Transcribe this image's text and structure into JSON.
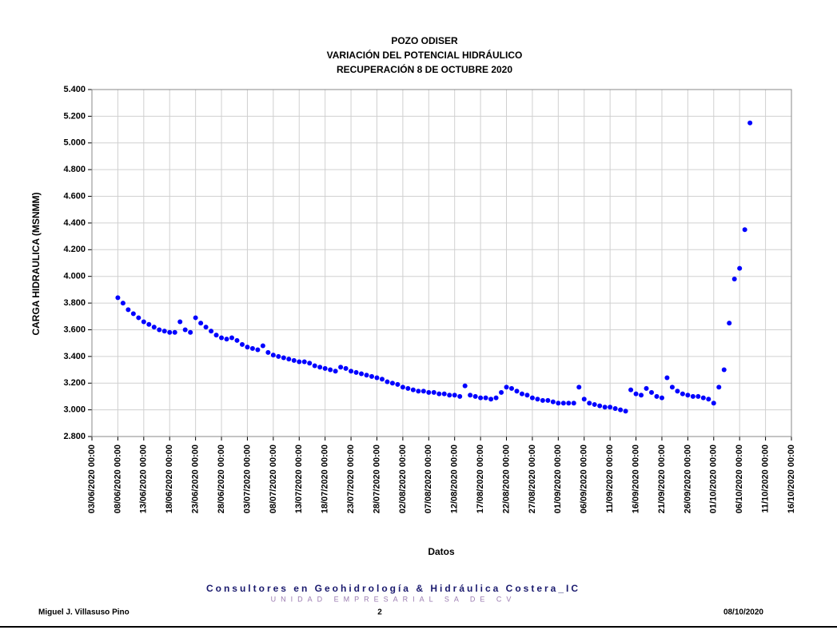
{
  "chart_data": {
    "type": "scatter",
    "title": "POZO ODISER",
    "subtitle": [
      "VARIACIÓN DEL POTENCIAL HIDRÁULICO",
      "RECUPERACIÓN 8 DE OCTUBRE 2020"
    ],
    "x_label": "Datos",
    "y_label": "CARGA HIDRAULICA (MSNMM)",
    "color": "#0000ff",
    "grid": true,
    "xlim": [
      "03/06/2020 00:00",
      "16/10/2020 00:00"
    ],
    "xticks": [
      "03/06/2020 00:00",
      "08/06/2020 00:00",
      "13/06/2020 00:00",
      "18/06/2020 00:00",
      "23/06/2020 00:00",
      "28/06/2020 00:00",
      "03/07/2020 00:00",
      "08/07/2020 00:00",
      "13/07/2020 00:00",
      "18/07/2020 00:00",
      "23/07/2020 00:00",
      "28/07/2020 00:00",
      "02/08/2020 00:00",
      "07/08/2020 00:00",
      "12/08/2020 00:00",
      "17/08/2020 00:00",
      "22/08/2020 00:00",
      "27/08/2020 00:00",
      "01/09/2020 00:00",
      "06/09/2020 00:00",
      "11/09/2020 00:00",
      "16/09/2020 00:00",
      "21/09/2020 00:00",
      "26/09/2020 00:00",
      "01/10/2020 00:00",
      "06/10/2020 00:00",
      "11/10/2020 00:00",
      "16/10/2020 00:00"
    ],
    "ylim": [
      2.8,
      5.4
    ],
    "yticks": [
      {
        "value": 2.8,
        "label": "2.800"
      },
      {
        "value": 3.0,
        "label": "3.000"
      },
      {
        "value": 3.2,
        "label": "3.200"
      },
      {
        "value": 3.4,
        "label": "3.400"
      },
      {
        "value": 3.6,
        "label": "3.600"
      },
      {
        "value": 3.8,
        "label": "3.800"
      },
      {
        "value": 4.0,
        "label": "4.000"
      },
      {
        "value": 4.2,
        "label": "4.200"
      },
      {
        "value": 4.4,
        "label": "4.400"
      },
      {
        "value": 4.6,
        "label": "4.600"
      },
      {
        "value": 4.8,
        "label": "4.800"
      },
      {
        "value": 5.0,
        "label": "5.000"
      },
      {
        "value": 5.2,
        "label": "5.200"
      },
      {
        "value": 5.4,
        "label": "5.400"
      }
    ],
    "x": [
      "08/06/2020 00:00",
      "09/06/2020 00:00",
      "10/06/2020 00:00",
      "11/06/2020 00:00",
      "12/06/2020 00:00",
      "13/06/2020 00:00",
      "14/06/2020 00:00",
      "15/06/2020 00:00",
      "16/06/2020 00:00",
      "17/06/2020 00:00",
      "18/06/2020 00:00",
      "19/06/2020 00:00",
      "20/06/2020 00:00",
      "21/06/2020 00:00",
      "22/06/2020 00:00",
      "23/06/2020 00:00",
      "24/06/2020 00:00",
      "25/06/2020 00:00",
      "26/06/2020 00:00",
      "27/06/2020 00:00",
      "28/06/2020 00:00",
      "29/06/2020 00:00",
      "30/06/2020 00:00",
      "01/07/2020 00:00",
      "02/07/2020 00:00",
      "03/07/2020 00:00",
      "04/07/2020 00:00",
      "05/07/2020 00:00",
      "06/07/2020 00:00",
      "07/07/2020 00:00",
      "08/07/2020 00:00",
      "09/07/2020 00:00",
      "10/07/2020 00:00",
      "11/07/2020 00:00",
      "12/07/2020 00:00",
      "13/07/2020 00:00",
      "14/07/2020 00:00",
      "15/07/2020 00:00",
      "16/07/2020 00:00",
      "17/07/2020 00:00",
      "18/07/2020 00:00",
      "19/07/2020 00:00",
      "20/07/2020 00:00",
      "21/07/2020 00:00",
      "22/07/2020 00:00",
      "23/07/2020 00:00",
      "24/07/2020 00:00",
      "25/07/2020 00:00",
      "26/07/2020 00:00",
      "27/07/2020 00:00",
      "28/07/2020 00:00",
      "29/07/2020 00:00",
      "30/07/2020 00:00",
      "31/07/2020 00:00",
      "01/08/2020 00:00",
      "02/08/2020 00:00",
      "03/08/2020 00:00",
      "04/08/2020 00:00",
      "05/08/2020 00:00",
      "06/08/2020 00:00",
      "07/08/2020 00:00",
      "08/08/2020 00:00",
      "09/08/2020 00:00",
      "10/08/2020 00:00",
      "11/08/2020 00:00",
      "12/08/2020 00:00",
      "13/08/2020 00:00",
      "14/08/2020 00:00",
      "15/08/2020 00:00",
      "16/08/2020 00:00",
      "17/08/2020 00:00",
      "18/08/2020 00:00",
      "19/08/2020 00:00",
      "20/08/2020 00:00",
      "21/08/2020 00:00",
      "22/08/2020 00:00",
      "23/08/2020 00:00",
      "24/08/2020 00:00",
      "25/08/2020 00:00",
      "26/08/2020 00:00",
      "27/08/2020 00:00",
      "28/08/2020 00:00",
      "29/08/2020 00:00",
      "30/08/2020 00:00",
      "31/08/2020 00:00",
      "01/09/2020 00:00",
      "02/09/2020 00:00",
      "03/09/2020 00:00",
      "04/09/2020 00:00",
      "05/09/2020 00:00",
      "06/09/2020 00:00",
      "07/09/2020 00:00",
      "08/09/2020 00:00",
      "09/09/2020 00:00",
      "10/09/2020 00:00",
      "11/09/2020 00:00",
      "12/09/2020 00:00",
      "13/09/2020 00:00",
      "14/09/2020 00:00",
      "15/09/2020 00:00",
      "16/09/2020 00:00",
      "17/09/2020 00:00",
      "18/09/2020 00:00",
      "19/09/2020 00:00",
      "20/09/2020 00:00",
      "21/09/2020 00:00",
      "22/09/2020 00:00",
      "23/09/2020 00:00",
      "24/09/2020 00:00",
      "25/09/2020 00:00",
      "26/09/2020 00:00",
      "27/09/2020 00:00",
      "28/09/2020 00:00",
      "29/09/2020 00:00",
      "30/09/2020 00:00",
      "01/10/2020 00:00",
      "02/10/2020 00:00",
      "03/10/2020 00:00",
      "04/10/2020 00:00",
      "05/10/2020 00:00",
      "06/10/2020 00:00",
      "07/10/2020 00:00",
      "08/10/2020 00:00"
    ],
    "values": [
      3.84,
      3.8,
      3.75,
      3.72,
      3.69,
      3.66,
      3.64,
      3.62,
      3.6,
      3.59,
      3.58,
      3.58,
      3.66,
      3.6,
      3.58,
      3.69,
      3.65,
      3.62,
      3.59,
      3.56,
      3.54,
      3.53,
      3.54,
      3.52,
      3.49,
      3.47,
      3.46,
      3.45,
      3.48,
      3.43,
      3.41,
      3.4,
      3.39,
      3.38,
      3.37,
      3.36,
      3.36,
      3.35,
      3.33,
      3.32,
      3.31,
      3.3,
      3.29,
      3.32,
      3.31,
      3.29,
      3.28,
      3.27,
      3.26,
      3.25,
      3.24,
      3.23,
      3.21,
      3.2,
      3.19,
      3.17,
      3.16,
      3.15,
      3.14,
      3.14,
      3.13,
      3.13,
      3.12,
      3.12,
      3.11,
      3.11,
      3.1,
      3.18,
      3.11,
      3.1,
      3.09,
      3.09,
      3.08,
      3.09,
      3.13,
      3.17,
      3.16,
      3.14,
      3.12,
      3.11,
      3.09,
      3.08,
      3.07,
      3.07,
      3.06,
      3.05,
      3.05,
      3.05,
      3.05,
      3.17,
      3.08,
      3.05,
      3.04,
      3.03,
      3.02,
      3.02,
      3.01,
      3.0,
      2.99,
      3.15,
      3.12,
      3.11,
      3.16,
      3.13,
      3.1,
      3.09,
      3.24,
      3.17,
      3.14,
      3.12,
      3.11,
      3.1,
      3.1,
      3.09,
      3.08,
      3.05,
      3.17,
      3.3,
      3.65,
      3.98,
      4.06,
      4.35,
      5.15
    ]
  },
  "footer": {
    "company": "Consultores en Geohidrología & Hidráulica Costera_IC",
    "company_sub": "UNIDAD EMPRESARIAL SA DE CV",
    "author": "Miguel J. Villasuso Pino",
    "page": "2",
    "date": "08/10/2020"
  }
}
